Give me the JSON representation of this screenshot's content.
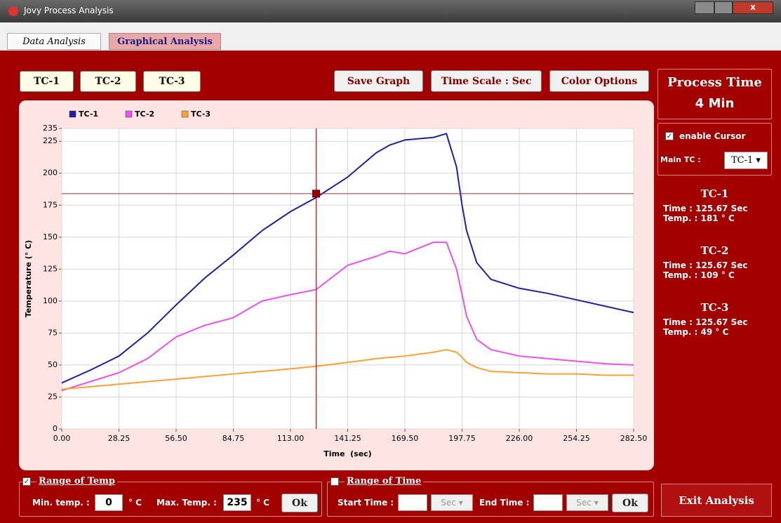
{
  "window": {
    "title": "Jovy Process Analysis"
  },
  "tabs": [
    "Data Analysis",
    "Graphical Analysis"
  ],
  "toolbar": {
    "left": [
      "TC-1",
      "TC-2",
      "TC-3"
    ],
    "right": [
      "Save Graph",
      "Time Scale : Sec",
      "Color Options"
    ]
  },
  "chart_data": {
    "type": "line",
    "xlabel": "Time  (sec)",
    "ylabel": "Temperature (° C)",
    "x": [
      0,
      14.125,
      28.25,
      42.375,
      56.5,
      70.625,
      84.75,
      98.875,
      113,
      125.67,
      141.25,
      155.375,
      162,
      169.5,
      183.625,
      190,
      195,
      197.75,
      200,
      205,
      212,
      226,
      240.125,
      254.25,
      268.375,
      282.5
    ],
    "series": [
      {
        "name": "TC-1",
        "color": "#1f1fa8",
        "values": [
          36,
          46,
          57,
          75,
          97,
          118,
          136,
          155,
          170,
          181,
          197,
          216,
          222,
          226,
          228,
          231,
          205,
          175,
          155,
          130,
          117,
          110,
          106,
          101,
          96,
          91
        ]
      },
      {
        "name": "TC-2",
        "color": "#f050f0",
        "values": [
          30,
          37,
          44,
          55,
          72,
          81,
          87,
          100,
          105,
          109,
          128,
          135,
          139,
          137,
          146,
          146,
          125,
          105,
          88,
          70,
          62,
          57,
          55,
          53,
          51,
          50
        ]
      },
      {
        "name": "TC-3",
        "color": "#ffa030",
        "values": [
          31,
          33,
          35,
          37,
          39,
          41,
          43,
          45,
          47,
          49,
          52,
          55,
          56,
          57,
          60,
          62,
          60,
          56,
          52,
          48,
          45,
          44,
          43,
          43,
          42,
          42
        ]
      }
    ],
    "xlim": [
      0,
      282.5
    ],
    "xticks": [
      {
        "value": 0,
        "label": "0.00"
      },
      28.25,
      {
        "value": 56.5,
        "label": "56.50"
      },
      84.75,
      {
        "value": 113,
        "label": "113.00"
      },
      141.25,
      {
        "value": 169.5,
        "label": "169.50"
      },
      197.75,
      {
        "value": 226,
        "label": "226.00"
      },
      254.25,
      {
        "value": 282.5,
        "label": "282.50"
      }
    ],
    "ylim": [
      0,
      235
    ],
    "yticks": [
      0,
      25,
      50,
      75,
      100,
      125,
      150,
      175,
      200,
      225,
      235
    ],
    "grid": true,
    "cursor": {
      "x": 125.67,
      "y": 184
    }
  },
  "sidebar": {
    "process_label": "Process Time",
    "process_value": "4 Min",
    "enable_cursor": "enable Cursor",
    "main_tc_label": "Main TC :",
    "main_tc_value": "TC-1",
    "readouts": [
      {
        "name": "TC-1",
        "time": "Time :  125.67 Sec",
        "temp": "Temp. : 181 ° C"
      },
      {
        "name": "TC-2",
        "time": "Time :  125.67 Sec",
        "temp": "Temp. : 109 ° C"
      },
      {
        "name": "TC-3",
        "time": "Time :  125.67 Sec",
        "temp": "Temp. : 49 ° C"
      }
    ]
  },
  "range_temp": {
    "title": "Range of Temp",
    "min_label": "Min. temp. :",
    "min_value": "0",
    "unit1": "° C",
    "max_label": "Max. Temp. :",
    "max_value": "235",
    "unit2": "° C",
    "ok": "Ok"
  },
  "range_time": {
    "title": "Range of Time",
    "start_label": "Start Time :",
    "start_unit": "Sec",
    "end_label": "End Time :",
    "end_unit": "Sec",
    "ok": "Ok"
  },
  "exit": "Exit Analysis"
}
